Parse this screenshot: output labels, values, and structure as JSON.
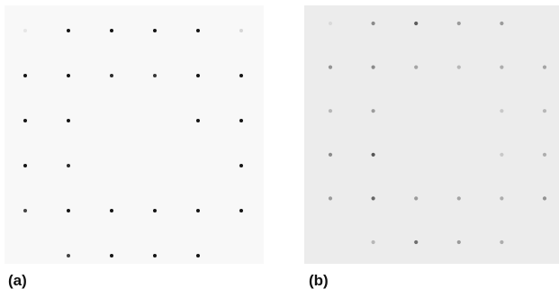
{
  "panels": [
    {
      "label": "(a)",
      "background": "#f8f8f8",
      "spot_color": "#151515",
      "grid": {
        "rows": 6,
        "cols": 6
      },
      "spots": [
        [
          0,
          0.08
        ],
        [
          0,
          1
        ],
        [
          0,
          1
        ],
        [
          0,
          1
        ],
        [
          0,
          1
        ],
        [
          0,
          0.15
        ],
        [
          1,
          1
        ],
        [
          1,
          1
        ],
        [
          1,
          0.9
        ],
        [
          1,
          0.85
        ],
        [
          1,
          1
        ],
        [
          1,
          1
        ],
        [
          1,
          1
        ],
        [
          1,
          1
        ],
        [
          0,
          0
        ],
        [
          0,
          0
        ],
        [
          1,
          1
        ],
        [
          1,
          1
        ],
        [
          1,
          1
        ],
        [
          1,
          0.9
        ],
        [
          0,
          0
        ],
        [
          0,
          0
        ],
        [
          0,
          0
        ],
        [
          1,
          1
        ],
        [
          1,
          0.8
        ],
        [
          1,
          1
        ],
        [
          1,
          1
        ],
        [
          1,
          1
        ],
        [
          1,
          1
        ],
        [
          1,
          1
        ],
        [
          0,
          0
        ],
        [
          1,
          0.8
        ],
        [
          1,
          1
        ],
        [
          1,
          1
        ],
        [
          1,
          1
        ],
        [
          0,
          0
        ]
      ]
    },
    {
      "label": "(b)",
      "background": "#ececec",
      "spot_color": "#3a3a3a",
      "grid": {
        "rows": 6,
        "cols": 6
      },
      "spots": [
        [
          0,
          0.1
        ],
        [
          1,
          0.55
        ],
        [
          1,
          0.8
        ],
        [
          1,
          0.45
        ],
        [
          1,
          0.45
        ],
        [
          0,
          0
        ],
        [
          1,
          0.5
        ],
        [
          1,
          0.55
        ],
        [
          1,
          0.4
        ],
        [
          1,
          0.3
        ],
        [
          1,
          0.35
        ],
        [
          1,
          0.4
        ],
        [
          1,
          0.3
        ],
        [
          1,
          0.45
        ],
        [
          0,
          0
        ],
        [
          0,
          0
        ],
        [
          1,
          0.2
        ],
        [
          1,
          0.3
        ],
        [
          1,
          0.55
        ],
        [
          1,
          0.85
        ],
        [
          0,
          0
        ],
        [
          0,
          0
        ],
        [
          1,
          0.2
        ],
        [
          1,
          0.35
        ],
        [
          1,
          0.45
        ],
        [
          1,
          0.75
        ],
        [
          1,
          0.45
        ],
        [
          1,
          0.4
        ],
        [
          1,
          0.35
        ],
        [
          1,
          0.5
        ],
        [
          0,
          0
        ],
        [
          1,
          0.3
        ],
        [
          1,
          0.7
        ],
        [
          1,
          0.45
        ],
        [
          1,
          0.35
        ],
        [
          0,
          0
        ]
      ]
    }
  ]
}
